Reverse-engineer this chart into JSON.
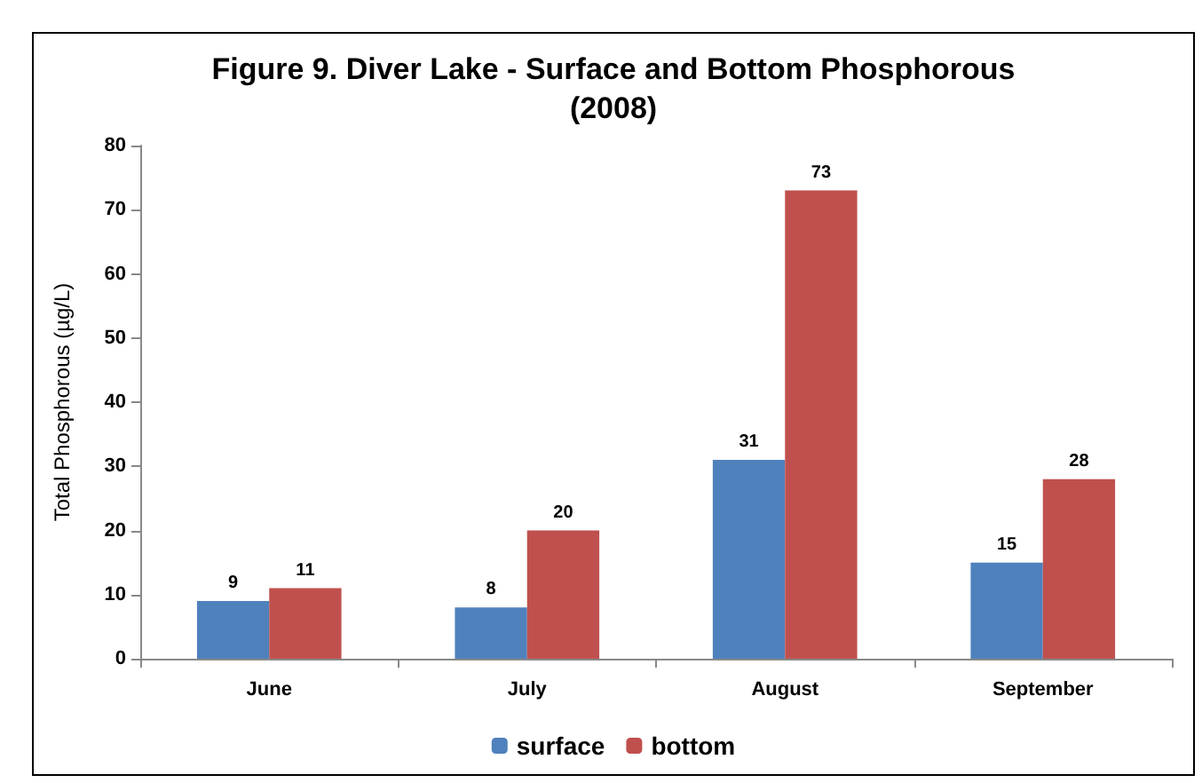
{
  "chart_data": {
    "type": "bar",
    "title": "Figure 9. Diver Lake - Surface and Bottom Phosphorous\n(2008)",
    "ylabel": "Total Phosphorous (µg/L)",
    "categories": [
      "June",
      "July",
      "August",
      "September"
    ],
    "series": [
      {
        "name": "surface",
        "color": "#4f81bd",
        "values": [
          9,
          8,
          31,
          15
        ]
      },
      {
        "name": "bottom",
        "color": "#c0504d",
        "values": [
          11,
          20,
          73,
          28
        ]
      }
    ],
    "ylim": [
      0,
      80
    ],
    "yticks": [
      0,
      10,
      20,
      30,
      40,
      50,
      60,
      70,
      80
    ],
    "data_labels": true,
    "legend": "bottom",
    "grid": false
  }
}
